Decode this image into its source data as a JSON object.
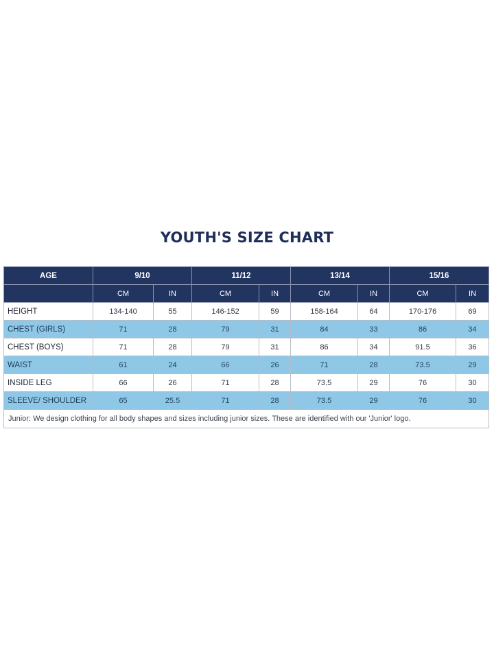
{
  "title": "YOUTH'S SIZE CHART",
  "header": {
    "age_label": "AGE",
    "groups": [
      "9/10",
      "11/12",
      "13/14",
      "15/16"
    ],
    "units": [
      "CM",
      "IN"
    ]
  },
  "rows": [
    {
      "label": "HEIGHT",
      "values": [
        "134-140",
        "55",
        "146-152",
        "59",
        "158-164",
        "64",
        "170-176",
        "69"
      ]
    },
    {
      "label": "CHEST (GIRLS)",
      "values": [
        "71",
        "28",
        "79",
        "31",
        "84",
        "33",
        "86",
        "34"
      ]
    },
    {
      "label": "CHEST (BOYS)",
      "values": [
        "71",
        "28",
        "79",
        "31",
        "86",
        "34",
        "91.5",
        "36"
      ]
    },
    {
      "label": "WAIST",
      "values": [
        "61",
        "24",
        "66",
        "26",
        "71",
        "28",
        "73.5",
        "29"
      ]
    },
    {
      "label": "INSIDE LEG",
      "values": [
        "66",
        "26",
        "71",
        "28",
        "73.5",
        "29",
        "76",
        "30"
      ]
    },
    {
      "label": "SLEEVE/ SHOULDER",
      "values": [
        "65",
        "25.5",
        "71",
        "28",
        "73.5",
        "29",
        "76",
        "30"
      ]
    }
  ],
  "note": "Junior: We design clothing for all body shapes and sizes including junior sizes. These are identified with our 'Junior' logo."
}
